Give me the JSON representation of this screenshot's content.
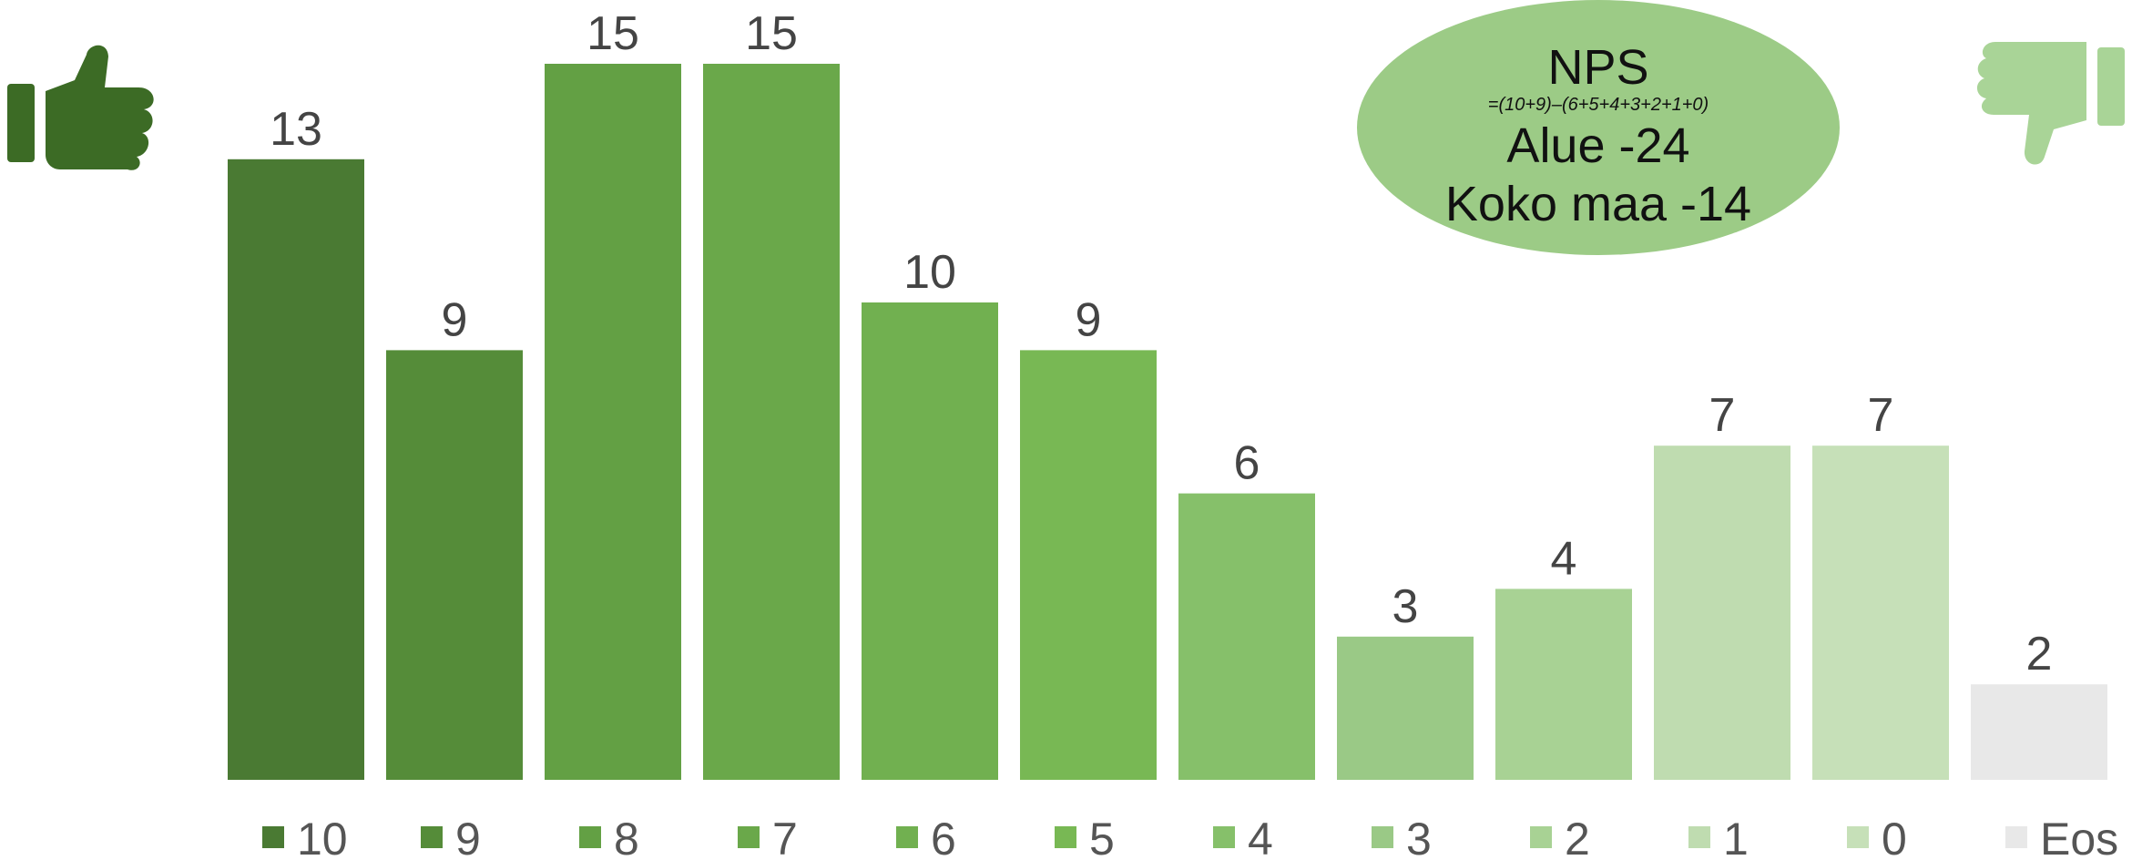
{
  "chart_data": {
    "type": "bar",
    "categories": [
      "10",
      "9",
      "8",
      "7",
      "6",
      "5",
      "4",
      "3",
      "2",
      "1",
      "0",
      "Eos"
    ],
    "values": [
      13,
      9,
      15,
      15,
      10,
      9,
      6,
      3,
      4,
      7,
      7,
      2
    ],
    "colors": [
      "#4a7a33",
      "#558c39",
      "#63a044",
      "#6aa84a",
      "#71b050",
      "#78b854",
      "#86c06a",
      "#9ac986",
      "#a8d294",
      "#bfdcb0",
      "#c6e0b8",
      "#e8e8e8"
    ],
    "title": "",
    "xlabel": "",
    "ylabel": "",
    "ylim": [
      0,
      15
    ],
    "grid": false,
    "legend_position": "bottom",
    "show_value_labels": true
  },
  "nps_box": {
    "title": "NPS",
    "formula": "=(10+9)–(6+5+4+3+2+1+0)",
    "line_area": "Alue -24",
    "line_country": "Koko maa -14",
    "color": "#9ccb86"
  },
  "icons": {
    "left": "thumbs-up-icon",
    "right": "thumbs-down-icon",
    "left_color": "#3c6b25",
    "right_color": "#a9d497"
  }
}
